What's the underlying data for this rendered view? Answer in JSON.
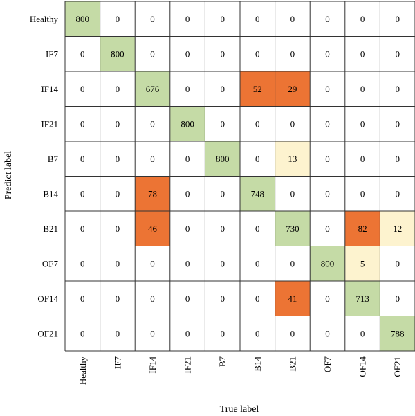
{
  "chart_data": {
    "type": "heatmap",
    "title": "",
    "xlabel": "True label",
    "ylabel": "Predict label",
    "x_categories": [
      "Healthy",
      "IF7",
      "IF14",
      "IF21",
      "B7",
      "B14",
      "B21",
      "OF7",
      "OF14",
      "OF21"
    ],
    "y_categories": [
      "Healthy",
      "IF7",
      "IF14",
      "IF21",
      "B7",
      "B14",
      "B21",
      "OF7",
      "OF14",
      "OF21"
    ],
    "matrix": [
      [
        800,
        0,
        0,
        0,
        0,
        0,
        0,
        0,
        0,
        0
      ],
      [
        0,
        800,
        0,
        0,
        0,
        0,
        0,
        0,
        0,
        0
      ],
      [
        0,
        0,
        676,
        0,
        0,
        52,
        29,
        0,
        0,
        0
      ],
      [
        0,
        0,
        0,
        800,
        0,
        0,
        0,
        0,
        0,
        0
      ],
      [
        0,
        0,
        0,
        0,
        800,
        0,
        13,
        0,
        0,
        0
      ],
      [
        0,
        0,
        78,
        0,
        0,
        748,
        0,
        0,
        0,
        0
      ],
      [
        0,
        0,
        46,
        0,
        0,
        0,
        730,
        0,
        82,
        12
      ],
      [
        0,
        0,
        0,
        0,
        0,
        0,
        0,
        800,
        5,
        0
      ],
      [
        0,
        0,
        0,
        0,
        0,
        0,
        41,
        0,
        713,
        0
      ],
      [
        0,
        0,
        0,
        0,
        0,
        0,
        0,
        0,
        0,
        788
      ]
    ],
    "colors": {
      "diagonal": "#c5dba6",
      "high_error": "#ec7434",
      "low_error": "#fdf3cf",
      "zero": "#ffffff",
      "grid": "#333333"
    },
    "high_error_threshold": 20
  }
}
